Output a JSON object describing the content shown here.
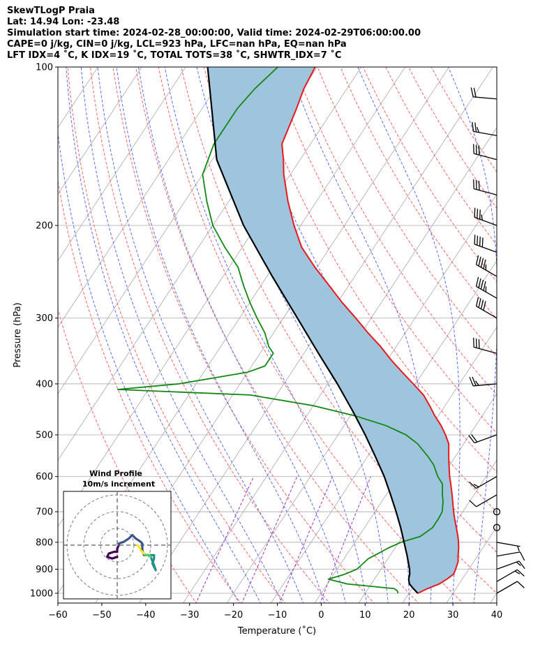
{
  "header": {
    "lines": [
      "SkewTLogP Praia",
      "Lat: 14.94   Lon: -23.48",
      "Simulation start time: 2024-02-28_00:00:00, Valid time: 2024-02-29T06:00:00.00",
      "CAPE=0 j/kg, CIN=0 j/kg, LCL=923 hPa, LFC=nan hPa, EQ=nan hPa",
      "LFT IDX=4 ˚C, K IDX=19 ˚C, TOTAL TOTS=38 ˚C, SHWTR_IDX=7 ˚C"
    ]
  },
  "chart_data": {
    "type": "line",
    "subtype": "skew-t log-p",
    "xlabel": "Temperature (˚C)",
    "ylabel": "Pressure (hPa)",
    "xlim": [
      -60,
      40
    ],
    "ylim": [
      1050,
      100
    ],
    "y_scale": "log",
    "x_ticks": [
      "−60",
      "−50",
      "−40",
      "−30",
      "−20",
      "−10",
      "0",
      "10",
      "20",
      "30",
      "40"
    ],
    "y_ticks": [
      "100",
      "200",
      "300",
      "400",
      "500",
      "600",
      "700",
      "800",
      "900",
      "1000"
    ],
    "grid": true,
    "colors": {
      "temperature": "#e8191a",
      "dewpoint": "#108810",
      "parcel": "#000000",
      "fill": "#9fc5de",
      "dry_adiabat": "#ff6262",
      "moist_adiabat": "#5a6cf5",
      "mixing_ratio": "#9933cc",
      "isotherm": "#a8a8a8"
    },
    "series": [
      {
        "key": "temperature",
        "pressure": [
          1000,
          980,
          960,
          940,
          920,
          900,
          870,
          850,
          820,
          800,
          780,
          750,
          720,
          700,
          670,
          650,
          620,
          600,
          570,
          550,
          520,
          500,
          480,
          460,
          440,
          420,
          400,
          380,
          360,
          340,
          320,
          300,
          280,
          260,
          240,
          220,
          200,
          180,
          160,
          150,
          140,
          120,
          110,
          100
        ],
        "temperature": [
          22,
          23.5,
          25.5,
          26.5,
          27.3,
          27,
          26.4,
          25.6,
          24.5,
          23.6,
          22.6,
          20.9,
          19.1,
          17.9,
          16.2,
          15,
          13.1,
          11.7,
          9.8,
          8.5,
          6.6,
          4.5,
          2.1,
          -0.8,
          -3.5,
          -6.5,
          -10.5,
          -14.8,
          -19.2,
          -23.5,
          -28.5,
          -33.5,
          -39,
          -44.5,
          -50.5,
          -56.5,
          -61.5,
          -66.5,
          -71.5,
          -73.8,
          -76.5,
          -78.5,
          -79.8,
          -80.5
        ]
      },
      {
        "key": "dewpoint",
        "pressure": [
          1000,
          990,
          980,
          960,
          940,
          920,
          900,
          880,
          860,
          840,
          820,
          800,
          780,
          750,
          720,
          700,
          670,
          650,
          620,
          600,
          570,
          550,
          520,
          500,
          480,
          460,
          440,
          420,
          410,
          400,
          380,
          370,
          350,
          340,
          320,
          300,
          280,
          260,
          240,
          220,
          200,
          180,
          160,
          140,
          120,
          110,
          100
        ],
        "temperature": [
          17.5,
          17,
          16,
          4.5,
          -0.5,
          2.5,
          4.5,
          5,
          5.5,
          7,
          8.5,
          10.5,
          14,
          15.5,
          15.5,
          15.3,
          14,
          12.8,
          11.2,
          9,
          6.3,
          3.8,
          -0.5,
          -4.5,
          -10.5,
          -19,
          -30,
          -46,
          -77,
          -64,
          -50,
          -47,
          -47,
          -49,
          -52,
          -56,
          -60,
          -64,
          -68,
          -74,
          -80,
          -85,
          -90,
          -92,
          -92,
          -91,
          -89
        ]
      },
      {
        "key": "parcel",
        "pressure": [
          1000,
          980,
          960,
          940,
          920,
          900,
          850,
          800,
          750,
          700,
          650,
          600,
          550,
          500,
          450,
          400,
          350,
          300,
          250,
          200,
          150,
          100
        ],
        "temperature": [
          22,
          20.3,
          18.7,
          17.8,
          17.3,
          16.5,
          14,
          11.2,
          8.2,
          4.8,
          1,
          -3.2,
          -8.2,
          -13.8,
          -20.3,
          -27.8,
          -36.7,
          -46.8,
          -58.8,
          -73,
          -89,
          -105
        ]
      }
    ],
    "wind_barbs": [
      {
        "pressure": 1000,
        "speed_kt": 10,
        "direction_deg": 60
      },
      {
        "pressure": 950,
        "speed_kt": 15,
        "direction_deg": 60
      },
      {
        "pressure": 900,
        "speed_kt": 15,
        "direction_deg": 70
      },
      {
        "pressure": 850,
        "speed_kt": 10,
        "direction_deg": 80
      },
      {
        "pressure": 800,
        "speed_kt": 5,
        "direction_deg": 100
      },
      {
        "pressure": 750,
        "speed_kt": 0,
        "direction_deg": 0
      },
      {
        "pressure": 700,
        "speed_kt": 0,
        "direction_deg": 0
      },
      {
        "pressure": 650,
        "speed_kt": 10,
        "direction_deg": 240
      },
      {
        "pressure": 600,
        "speed_kt": 15,
        "direction_deg": 240
      },
      {
        "pressure": 500,
        "speed_kt": 20,
        "direction_deg": 250
      },
      {
        "pressure": 400,
        "speed_kt": 25,
        "direction_deg": 265
      },
      {
        "pressure": 350,
        "speed_kt": 30,
        "direction_deg": 285
      },
      {
        "pressure": 300,
        "speed_kt": 40,
        "direction_deg": 300
      },
      {
        "pressure": 275,
        "speed_kt": 45,
        "direction_deg": 300
      },
      {
        "pressure": 250,
        "speed_kt": 45,
        "direction_deg": 300
      },
      {
        "pressure": 225,
        "speed_kt": 40,
        "direction_deg": 290
      },
      {
        "pressure": 200,
        "speed_kt": 35,
        "direction_deg": 290
      },
      {
        "pressure": 175,
        "speed_kt": 30,
        "direction_deg": 285
      },
      {
        "pressure": 150,
        "speed_kt": 30,
        "direction_deg": 285
      },
      {
        "pressure": 135,
        "speed_kt": 25,
        "direction_deg": 280
      },
      {
        "pressure": 115,
        "speed_kt": 20,
        "direction_deg": 275
      }
    ],
    "inset": {
      "title": "Wind Profile",
      "subtitle": "10m/s increment",
      "rings": [
        10,
        20,
        30
      ],
      "hodograph_colors": [
        "#440154",
        "#3b528b",
        "#21918c",
        "#5ec962",
        "#fde725"
      ],
      "hodograph_segments": [
        {
          "color": "#440154",
          "points": [
            [
              0,
              -7
            ],
            [
              -3,
              -8
            ],
            [
              -6,
              -7
            ],
            [
              -5,
              -5
            ],
            [
              -2,
              -4
            ],
            [
              0,
              -4
            ],
            [
              0,
              -2
            ],
            [
              1,
              0
            ]
          ]
        },
        {
          "color": "#3b528b",
          "points": [
            [
              1,
              0
            ],
            [
              1,
              1
            ],
            [
              4,
              2
            ],
            [
              7,
              4
            ],
            [
              9,
              6
            ],
            [
              11,
              4
            ],
            [
              14,
              2
            ],
            [
              15,
              1
            ],
            [
              15,
              -3
            ],
            [
              16,
              -6
            ]
          ]
        },
        {
          "color": "#21918c",
          "points": [
            [
              16,
              -6
            ],
            [
              20,
              -6
            ],
            [
              22,
              -6
            ],
            [
              22,
              -8
            ],
            [
              21,
              -11
            ],
            [
              22,
              -13
            ],
            [
              23,
              -15
            ],
            [
              22,
              -12
            ],
            [
              20,
              -7
            ]
          ]
        },
        {
          "color": "#5ec962",
          "points": [
            [
              20,
              -7
            ],
            [
              19,
              -6
            ],
            [
              17,
              -6
            ],
            [
              16,
              -5
            ]
          ]
        },
        {
          "color": "#fde725",
          "points": [
            [
              16,
              -5
            ],
            [
              15,
              -4
            ],
            [
              14,
              -3
            ],
            [
              13,
              -1
            ],
            [
              12,
              0
            ]
          ]
        }
      ]
    }
  }
}
